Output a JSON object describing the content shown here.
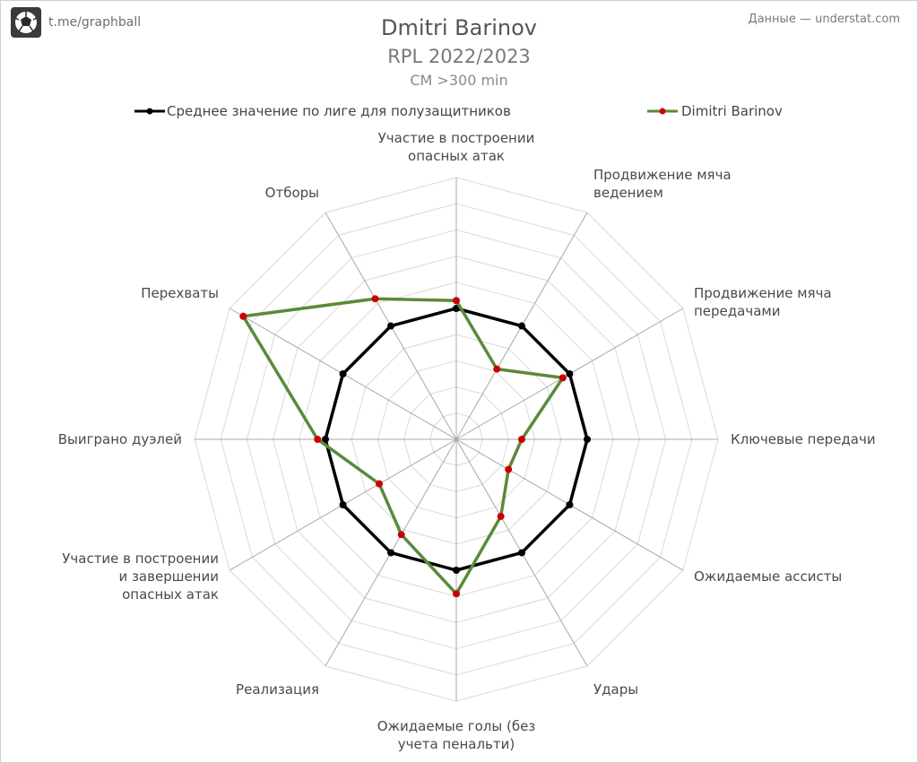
{
  "header": {
    "channel": "t.me/graphball",
    "source": "Данные — understat.com",
    "logo_icon": "football-logo-icon"
  },
  "chart_data": {
    "type": "radar",
    "title": "Dmitri Barinov",
    "subtitle": "RPL 2022/2023",
    "subtitle2": "CM >300 min",
    "axes": [
      [
        "Участие в построении",
        "опасных атак"
      ],
      [
        "Продвижение мяча",
        "ведением"
      ],
      [
        "Продвижение мяча",
        "передачами"
      ],
      [
        "Ключевые передачи"
      ],
      [
        "Ожидаемые ассисты"
      ],
      [
        "Удары"
      ],
      [
        "Ожидаемые голы (без",
        "учета пенальти)"
      ],
      [
        "Реализация"
      ],
      [
        "Участие в построении",
        "и завершении",
        "опасных атак"
      ],
      [
        "Выиграно дуэлей"
      ],
      [
        "Перехваты"
      ],
      [
        "Отборы"
      ]
    ],
    "rlim": [
      0,
      10
    ],
    "rings": 10,
    "grid": true,
    "legend_position": "top",
    "series": [
      {
        "name": "Среднее значение по лиге для полузащитников",
        "color": "#000000",
        "values": [
          5,
          5,
          5,
          5,
          5,
          5,
          5,
          5,
          5,
          5,
          5,
          5
        ]
      },
      {
        "name": "Dimitri Barinov",
        "color": "#5a8a3a",
        "marker_color": "#cc0000",
        "values": [
          5.3,
          3.1,
          4.7,
          2.5,
          2.3,
          3.4,
          5.9,
          4.2,
          3.4,
          5.3,
          9.4,
          6.2
        ]
      }
    ]
  }
}
